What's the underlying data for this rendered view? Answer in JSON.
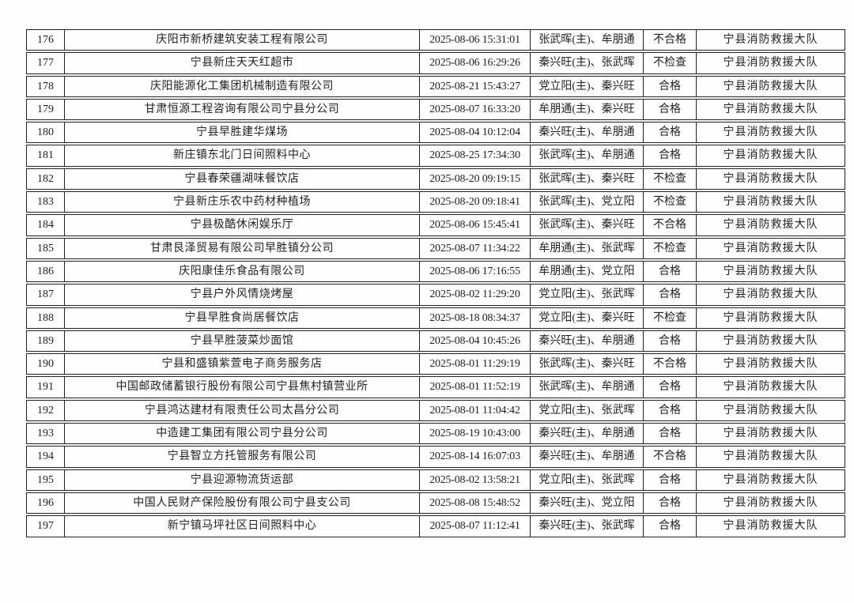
{
  "table": {
    "department": "宁县消防救援大队",
    "rows": [
      {
        "no": "176",
        "name": "庆阳市新桥建筑安装工程有限公司",
        "time": "2025-08-06 15:31:01",
        "inspectors": "张武晖(主)、牟朋通",
        "result": "不合格",
        "dept": "宁县消防救援大队"
      },
      {
        "no": "177",
        "name": "宁县新庄天天红超市",
        "time": "2025-08-06 16:29:26",
        "inspectors": "秦兴旺(主)、张武晖",
        "result": "不检查",
        "dept": "宁县消防救援大队"
      },
      {
        "no": "178",
        "name": "庆阳能源化工集团机械制造有限公司",
        "time": "2025-08-21 15:43:27",
        "inspectors": "党立阳(主)、秦兴旺",
        "result": "合格",
        "dept": "宁县消防救援大队"
      },
      {
        "no": "179",
        "name": "甘肃恒源工程咨询有限公司宁县分公司",
        "time": "2025-08-07 16:33:20",
        "inspectors": "牟朋通(主)、秦兴旺",
        "result": "合格",
        "dept": "宁县消防救援大队"
      },
      {
        "no": "180",
        "name": "宁县早胜建华煤场",
        "time": "2025-08-04 10:12:04",
        "inspectors": "秦兴旺(主)、牟朋通",
        "result": "合格",
        "dept": "宁县消防救援大队"
      },
      {
        "no": "181",
        "name": "新庄镇东北门日间照料中心",
        "time": "2025-08-25 17:34:30",
        "inspectors": "张武晖(主)、牟朋通",
        "result": "合格",
        "dept": "宁县消防救援大队"
      },
      {
        "no": "182",
        "name": "宁县春荣疆湖味餐饮店",
        "time": "2025-08-20 09:19:15",
        "inspectors": "张武晖(主)、秦兴旺",
        "result": "不检查",
        "dept": "宁县消防救援大队"
      },
      {
        "no": "183",
        "name": "宁县新庄乐农中药材种植场",
        "time": "2025-08-20 09:18:41",
        "inspectors": "张武晖(主)、党立阳",
        "result": "不检查",
        "dept": "宁县消防救援大队"
      },
      {
        "no": "184",
        "name": "宁县极酷休闲娱乐厅",
        "time": "2025-08-06 15:45:41",
        "inspectors": "张武晖(主)、秦兴旺",
        "result": "不合格",
        "dept": "宁县消防救援大队"
      },
      {
        "no": "185",
        "name": "甘肃艮泽贸易有限公司早胜镇分公司",
        "time": "2025-08-07 11:34:22",
        "inspectors": "牟朋通(主)、张武晖",
        "result": "不检查",
        "dept": "宁县消防救援大队"
      },
      {
        "no": "186",
        "name": "庆阳康佳乐食品有限公司",
        "time": "2025-08-06 17:16:55",
        "inspectors": "牟朋通(主)、党立阳",
        "result": "合格",
        "dept": "宁县消防救援大队"
      },
      {
        "no": "187",
        "name": "宁县户外风情烧烤屋",
        "time": "2025-08-02 11:29:20",
        "inspectors": "党立阳(主)、张武晖",
        "result": "合格",
        "dept": "宁县消防救援大队"
      },
      {
        "no": "188",
        "name": "宁县早胜食尚居餐饮店",
        "time": "2025-08-18 08:34:37",
        "inspectors": "党立阳(主)、秦兴旺",
        "result": "不检查",
        "dept": "宁县消防救援大队"
      },
      {
        "no": "189",
        "name": "宁县早胜菠菜炒面馆",
        "time": "2025-08-04 10:45:26",
        "inspectors": "秦兴旺(主)、牟朋通",
        "result": "合格",
        "dept": "宁县消防救援大队"
      },
      {
        "no": "190",
        "name": "宁县和盛镇紫萱电子商务服务店",
        "time": "2025-08-01 11:29:19",
        "inspectors": "张武晖(主)、秦兴旺",
        "result": "不合格",
        "dept": "宁县消防救援大队"
      },
      {
        "no": "191",
        "name": "中国邮政储蓄银行股份有限公司宁县焦村镇营业所",
        "time": "2025-08-01 11:52:19",
        "inspectors": "张武晖(主)、牟朋通",
        "result": "合格",
        "dept": "宁县消防救援大队"
      },
      {
        "no": "192",
        "name": "宁县鸿达建材有限责任公司太昌分公司",
        "time": "2025-08-01 11:04:42",
        "inspectors": "党立阳(主)、张武晖",
        "result": "合格",
        "dept": "宁县消防救援大队"
      },
      {
        "no": "193",
        "name": "中造建工集团有限公司宁县分公司",
        "time": "2025-08-19 10:43:00",
        "inspectors": "秦兴旺(主)、牟朋通",
        "result": "合格",
        "dept": "宁县消防救援大队"
      },
      {
        "no": "194",
        "name": "宁县智立方托管服务有限公司",
        "time": "2025-08-14 16:07:03",
        "inspectors": "秦兴旺(主)、牟朋通",
        "result": "不合格",
        "dept": "宁县消防救援大队"
      },
      {
        "no": "195",
        "name": "宁县迎源物流货运部",
        "time": "2025-08-02 13:58:21",
        "inspectors": "党立阳(主)、张武晖",
        "result": "合格",
        "dept": "宁县消防救援大队"
      },
      {
        "no": "196",
        "name": "中国人民财产保险股份有限公司宁县支公司",
        "time": "2025-08-08 15:48:52",
        "inspectors": "秦兴旺(主)、党立阳",
        "result": "合格",
        "dept": "宁县消防救援大队"
      },
      {
        "no": "197",
        "name": "新宁镇马坪社区日间照料中心",
        "time": "2025-08-07 11:12:41",
        "inspectors": "秦兴旺(主)、张武晖",
        "result": "合格",
        "dept": "宁县消防救援大队"
      }
    ]
  }
}
